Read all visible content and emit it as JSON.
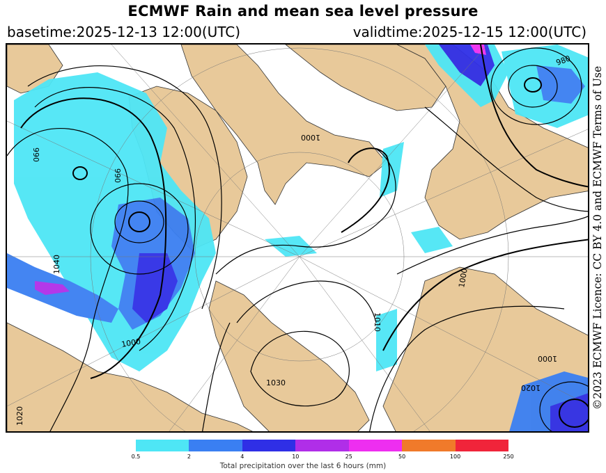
{
  "header": {
    "title": "ECMWF Rain and mean sea level pressure",
    "basetime": "basetime:2025-12-13 12:00(UTC)",
    "validtime": "validtime:2025-12-15 12:00(UTC)"
  },
  "licence": "©2023 ECMWF Licence: CC BY 4.0 and ECMWF Terms of Use",
  "map": {
    "isobar_labels": [
      "980",
      "990",
      "1000",
      "1010",
      "1020",
      "1030",
      "1040"
    ],
    "colors": {
      "land": "#e8c99a",
      "sea": "#ffffff",
      "isobar": "#000000"
    }
  },
  "legend": {
    "label": "Total precipitation over the last 6 hours (mm)",
    "ticks": [
      "0.5",
      "2",
      "4",
      "10",
      "25",
      "50",
      "100",
      "250"
    ],
    "colors": [
      "#4ee6f5",
      "#3a7ff2",
      "#2f2fe6",
      "#b02ee8",
      "#ee2ef0",
      "#f07a2a",
      "#f0243a"
    ]
  }
}
